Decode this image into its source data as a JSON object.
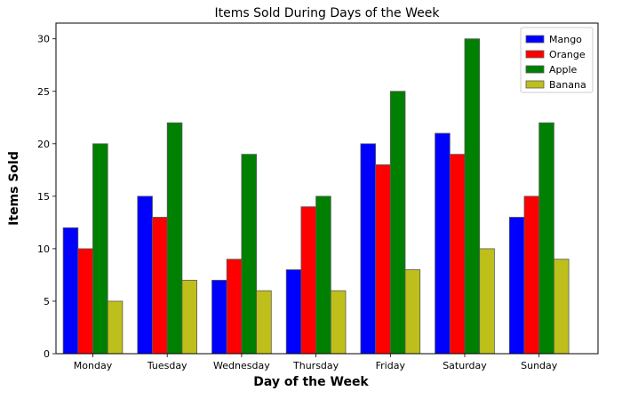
{
  "chart_data": {
    "type": "bar",
    "title": "Items Sold During Days of the Week",
    "xlabel": "Day of the Week",
    "ylabel": "Items Sold",
    "categories": [
      "Monday",
      "Tuesday",
      "Wednesday",
      "Thursday",
      "Friday",
      "Saturday",
      "Sunday"
    ],
    "ylim": [
      0,
      31.5
    ],
    "yticks": [
      0,
      5,
      10,
      15,
      20,
      25,
      30
    ],
    "grid": false,
    "legend_position": "top-right",
    "series": [
      {
        "name": "Mango",
        "color": "#0000ff",
        "values": [
          12,
          15,
          7,
          8,
          20,
          21,
          13
        ]
      },
      {
        "name": "Orange",
        "color": "#ff0000",
        "values": [
          10,
          13,
          9,
          14,
          18,
          19,
          15
        ]
      },
      {
        "name": "Apple",
        "color": "#008000",
        "values": [
          20,
          22,
          19,
          15,
          25,
          30,
          22
        ]
      },
      {
        "name": "Banana",
        "color": "#bfbf1b",
        "values": [
          5,
          7,
          6,
          6,
          8,
          10,
          9
        ]
      }
    ]
  }
}
